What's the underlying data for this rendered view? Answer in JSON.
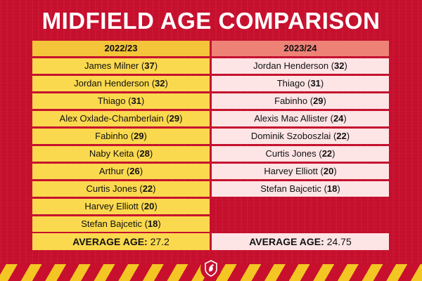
{
  "title": "MIDFIELD AGE COMPARISON",
  "columns": [
    {
      "season": "2022/23",
      "players": [
        {
          "name": "James Milner",
          "age": "37"
        },
        {
          "name": "Jordan Henderson",
          "age": "32"
        },
        {
          "name": "Thiago",
          "age": "31"
        },
        {
          "name": "Alex Oxlade-Chamberlain",
          "age": "29"
        },
        {
          "name": "Fabinho",
          "age": "29"
        },
        {
          "name": "Naby Keita",
          "age": "28"
        },
        {
          "name": "Arthur",
          "age": "26"
        },
        {
          "name": "Curtis Jones",
          "age": "22"
        },
        {
          "name": "Harvey Elliott",
          "age": "20"
        },
        {
          "name": "Stefan Bajcetic",
          "age": "18"
        }
      ],
      "average_label": "AVERAGE AGE:",
      "average_value": "27.2"
    },
    {
      "season": "2023/24",
      "players": [
        {
          "name": "Jordan Henderson",
          "age": "32"
        },
        {
          "name": "Thiago",
          "age": "31"
        },
        {
          "name": "Fabinho",
          "age": "29"
        },
        {
          "name": "Alexis Mac Allister",
          "age": "24"
        },
        {
          "name": "Dominik Szoboszlai",
          "age": "22"
        },
        {
          "name": "Curtis Jones",
          "age": "22"
        },
        {
          "name": "Harvey Elliott",
          "age": "20"
        },
        {
          "name": "Stefan Bajcetic",
          "age": "18"
        }
      ],
      "average_label": "AVERAGE AGE:",
      "average_value": "24.75"
    }
  ],
  "colors": {
    "background": "#c8102e",
    "left_header": "#f4c43a",
    "left_cell": "#fbd94e",
    "right_header": "#ee8277",
    "right_cell": "#fde4e5",
    "stripe_yellow": "#f3c623"
  },
  "logo": "liverbird-crest-icon"
}
